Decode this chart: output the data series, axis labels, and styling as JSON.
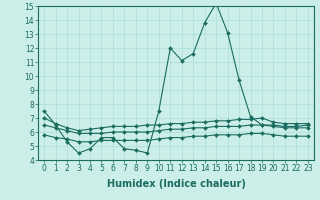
{
  "xlabel": "Humidex (Indice chaleur)",
  "background_color": "#cceee8",
  "grid_color": "#aaddd8",
  "line_color": "#1a6b60",
  "xlim": [
    -0.5,
    23.5
  ],
  "ylim": [
    4,
    15
  ],
  "xticks": [
    0,
    1,
    2,
    3,
    4,
    5,
    6,
    7,
    8,
    9,
    10,
    11,
    12,
    13,
    14,
    15,
    16,
    17,
    18,
    19,
    20,
    21,
    22,
    23
  ],
  "yticks": [
    4,
    5,
    6,
    7,
    8,
    9,
    10,
    11,
    12,
    13,
    14,
    15
  ],
  "series": [
    [
      7.5,
      6.5,
      5.3,
      4.5,
      4.8,
      5.6,
      5.6,
      4.8,
      4.7,
      4.5,
      7.5,
      12.0,
      11.1,
      11.6,
      13.8,
      15.2,
      13.1,
      9.7,
      7.1,
      6.5,
      6.5,
      6.4,
      6.4,
      6.5
    ],
    [
      7.0,
      6.6,
      6.3,
      6.1,
      6.2,
      6.3,
      6.4,
      6.4,
      6.4,
      6.5,
      6.5,
      6.6,
      6.6,
      6.7,
      6.7,
      6.8,
      6.8,
      6.9,
      6.9,
      7.0,
      6.7,
      6.6,
      6.6,
      6.6
    ],
    [
      6.5,
      6.3,
      6.1,
      5.9,
      5.9,
      5.9,
      6.0,
      6.0,
      6.0,
      6.0,
      6.1,
      6.2,
      6.2,
      6.3,
      6.3,
      6.4,
      6.4,
      6.4,
      6.5,
      6.5,
      6.4,
      6.3,
      6.3,
      6.3
    ],
    [
      5.8,
      5.6,
      5.5,
      5.3,
      5.3,
      5.4,
      5.4,
      5.4,
      5.4,
      5.4,
      5.5,
      5.6,
      5.6,
      5.7,
      5.7,
      5.8,
      5.8,
      5.8,
      5.9,
      5.9,
      5.8,
      5.7,
      5.7,
      5.7
    ]
  ],
  "markersize": 2.0,
  "linewidth": 0.8,
  "tick_fontsize": 5.5,
  "xlabel_fontsize": 7
}
